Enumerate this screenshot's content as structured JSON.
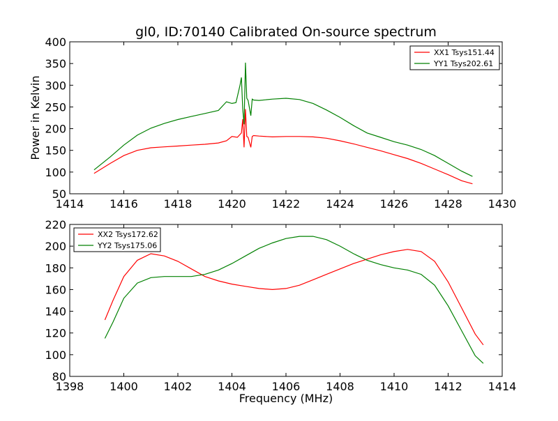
{
  "figure": {
    "title": "gl0, ID:70140 Calibrated On-source spectrum"
  },
  "chart_data": [
    {
      "type": "line",
      "title": "gl0, ID:70140 Calibrated On-source spectrum",
      "xlabel": "",
      "ylabel": "Power in Kelvin",
      "xlim": [
        1414,
        1430
      ],
      "ylim": [
        50,
        400
      ],
      "xticks": [
        1414,
        1416,
        1418,
        1420,
        1422,
        1424,
        1426,
        1428,
        1430
      ],
      "yticks": [
        50,
        100,
        150,
        200,
        250,
        300,
        350,
        400
      ],
      "grid": false,
      "legend_position": "top-right",
      "series": [
        {
          "name": "XX1 Tsys151.44",
          "color": "#ff0000",
          "x": [
            1414.9,
            1415.5,
            1416.0,
            1416.5,
            1417.0,
            1417.5,
            1418.0,
            1418.5,
            1419.0,
            1419.5,
            1419.8,
            1420.0,
            1420.2,
            1420.35,
            1420.4,
            1420.45,
            1420.5,
            1420.55,
            1420.6,
            1420.7,
            1420.75,
            1420.8,
            1421.0,
            1421.5,
            1422.0,
            1422.5,
            1423.0,
            1423.5,
            1424.0,
            1424.5,
            1425.0,
            1425.5,
            1426.0,
            1426.5,
            1427.0,
            1427.5,
            1428.0,
            1428.5,
            1428.9
          ],
          "y": [
            97,
            120,
            138,
            150,
            156,
            158,
            160,
            162,
            164,
            167,
            172,
            182,
            180,
            190,
            222,
            157,
            245,
            182,
            180,
            157,
            182,
            184,
            183,
            181,
            182,
            182,
            181,
            178,
            172,
            165,
            157,
            149,
            140,
            131,
            120,
            107,
            94,
            80,
            73
          ]
        },
        {
          "name": "YY1 Tsys202.61",
          "color": "#008000",
          "x": [
            1414.9,
            1415.5,
            1416.0,
            1416.5,
            1417.0,
            1417.5,
            1418.0,
            1418.5,
            1419.0,
            1419.5,
            1419.8,
            1420.0,
            1420.15,
            1420.3,
            1420.35,
            1420.4,
            1420.45,
            1420.5,
            1420.55,
            1420.6,
            1420.7,
            1420.75,
            1420.8,
            1421.0,
            1421.5,
            1422.0,
            1422.5,
            1423.0,
            1423.5,
            1424.0,
            1424.5,
            1425.0,
            1425.5,
            1426.0,
            1426.5,
            1427.0,
            1427.5,
            1428.0,
            1428.5,
            1428.9
          ],
          "y": [
            105,
            135,
            162,
            185,
            201,
            212,
            221,
            228,
            235,
            242,
            262,
            258,
            260,
            300,
            318,
            245,
            210,
            352,
            270,
            265,
            230,
            268,
            266,
            265,
            268,
            270,
            267,
            258,
            243,
            226,
            207,
            190,
            180,
            170,
            162,
            152,
            138,
            120,
            102,
            90
          ]
        }
      ]
    },
    {
      "type": "line",
      "title": "",
      "xlabel": "Frequency (MHz)",
      "ylabel": "",
      "xlim": [
        1398,
        1414
      ],
      "ylim": [
        80,
        220
      ],
      "xticks": [
        1398,
        1400,
        1402,
        1404,
        1406,
        1408,
        1410,
        1412,
        1414
      ],
      "yticks": [
        80,
        100,
        120,
        140,
        160,
        180,
        200,
        220
      ],
      "grid": false,
      "legend_position": "top-left",
      "series": [
        {
          "name": "XX2 Tsys172.62",
          "color": "#ff0000",
          "x": [
            1399.3,
            1399.6,
            1400.0,
            1400.5,
            1401.0,
            1401.5,
            1402.0,
            1402.5,
            1403.0,
            1403.5,
            1404.0,
            1404.5,
            1405.0,
            1405.5,
            1406.0,
            1406.5,
            1407.0,
            1407.5,
            1408.0,
            1408.5,
            1409.0,
            1409.5,
            1410.0,
            1410.5,
            1411.0,
            1411.5,
            1412.0,
            1412.5,
            1413.0,
            1413.3
          ],
          "y": [
            132,
            150,
            172,
            187,
            193,
            191,
            186,
            179,
            172,
            168,
            165,
            163,
            161,
            160,
            161,
            164,
            169,
            174,
            179,
            184,
            188,
            192,
            195,
            197,
            195,
            186,
            167,
            143,
            119,
            109
          ]
        },
        {
          "name": "YY2 Tsys175.06",
          "color": "#008000",
          "x": [
            1399.3,
            1399.6,
            1400.0,
            1400.5,
            1401.0,
            1401.5,
            1402.0,
            1402.5,
            1403.0,
            1403.5,
            1404.0,
            1404.5,
            1405.0,
            1405.5,
            1406.0,
            1406.5,
            1407.0,
            1407.5,
            1408.0,
            1408.5,
            1409.0,
            1409.5,
            1410.0,
            1410.5,
            1411.0,
            1411.5,
            1412.0,
            1412.5,
            1413.0,
            1413.3
          ],
          "y": [
            115,
            130,
            152,
            166,
            171,
            172,
            172,
            172,
            174,
            178,
            184,
            191,
            198,
            203,
            207,
            209,
            209,
            206,
            200,
            193,
            187,
            183,
            180,
            178,
            174,
            164,
            145,
            122,
            99,
            92
          ]
        }
      ]
    }
  ]
}
